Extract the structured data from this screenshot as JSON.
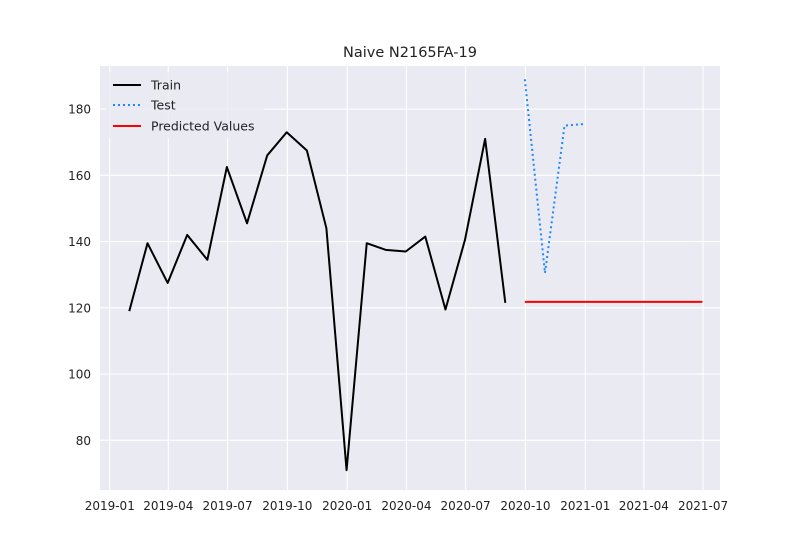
{
  "chart_data": {
    "type": "line",
    "title": "Naive N2165FA-19",
    "xlabel": "",
    "ylabel": "",
    "x_axis": "date",
    "xlim": [
      "2018-12-17",
      "2021-07-27"
    ],
    "ylim": [
      65,
      193
    ],
    "x_ticks": [
      "2019-01",
      "2019-04",
      "2019-07",
      "2019-10",
      "2020-01",
      "2020-04",
      "2020-07",
      "2020-10",
      "2021-01",
      "2021-04",
      "2021-07"
    ],
    "y_ticks": [
      80,
      100,
      120,
      140,
      160,
      180
    ],
    "grid": true,
    "legend_position": "top-left",
    "series": [
      {
        "name": "Train",
        "color": "#000000",
        "style": "solid",
        "x": [
          "2019-01-31",
          "2019-02-28",
          "2019-03-31",
          "2019-04-30",
          "2019-05-31",
          "2019-06-30",
          "2019-07-31",
          "2019-08-31",
          "2019-09-30",
          "2019-10-31",
          "2019-11-30",
          "2019-12-31",
          "2020-01-31",
          "2020-02-29",
          "2020-03-31",
          "2020-04-30",
          "2020-05-31",
          "2020-06-30",
          "2020-07-31",
          "2020-08-31"
        ],
        "y": [
          119,
          139.5,
          127.5,
          142,
          134.5,
          162.5,
          145.5,
          166,
          173,
          167.5,
          144,
          71,
          139.5,
          137.5,
          137,
          141.5,
          119.5,
          140.5,
          171,
          121.5
        ]
      },
      {
        "name": "Test",
        "color": "#1e88ff",
        "style": "dotted",
        "x": [
          "2020-09-30",
          "2020-10-31",
          "2020-11-30",
          "2020-12-31"
        ],
        "y": [
          189,
          130.5,
          175,
          175.5
        ]
      },
      {
        "name": "Predicted Values",
        "color": "#ff0000",
        "style": "solid",
        "x": [
          "2020-09-30",
          "2021-06-30"
        ],
        "y": [
          121.8,
          121.8
        ]
      }
    ]
  }
}
